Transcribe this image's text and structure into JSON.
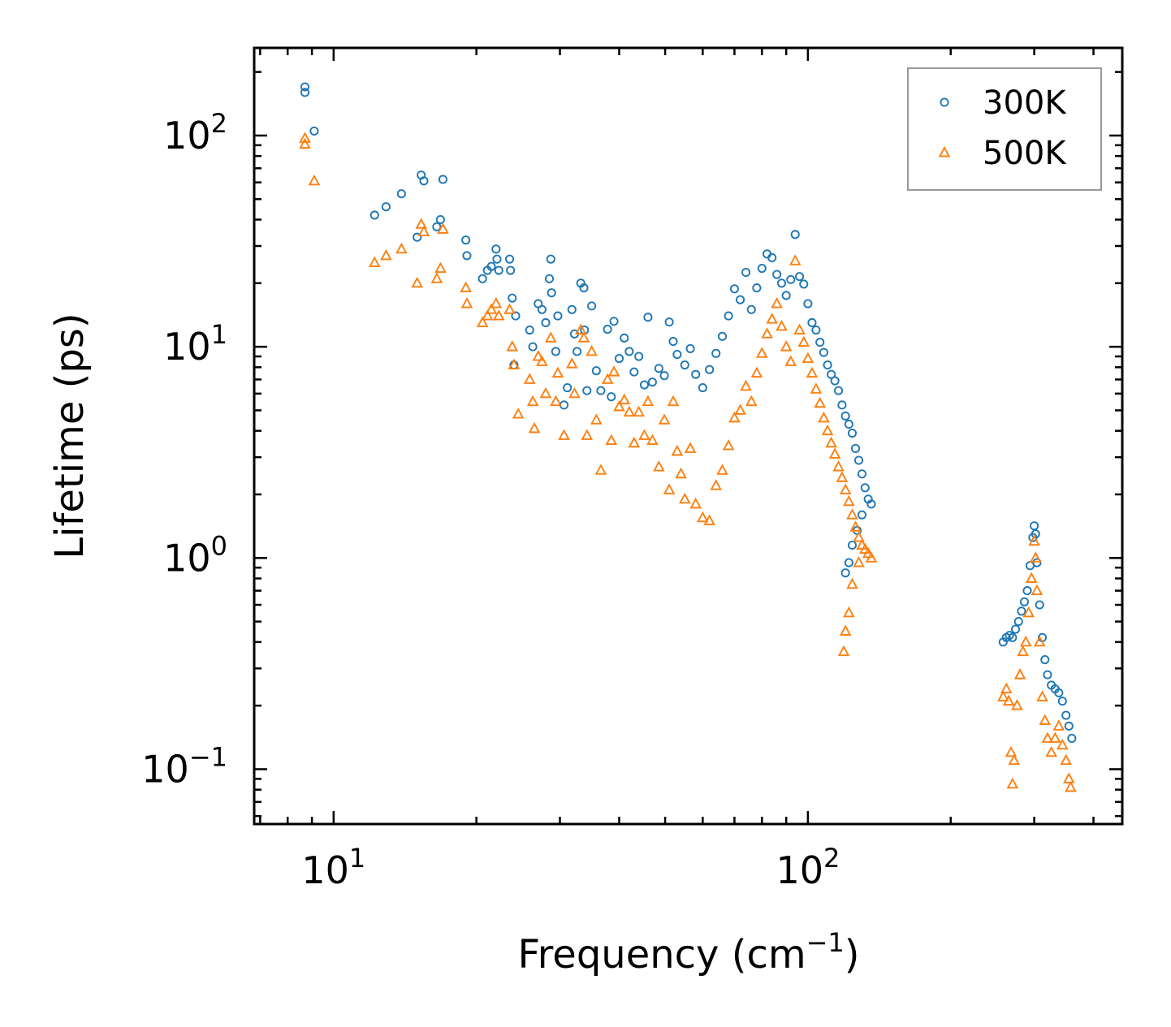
{
  "chart_data": {
    "type": "scatter",
    "title": "",
    "xlabel": "Frequency (cm",
    "xlabel_sup": "−1",
    "xlabel_end": ")",
    "ylabel": "Lifetime (ps)",
    "xscale": "log",
    "yscale": "log",
    "xlim": [
      6.8,
      460
    ],
    "ylim": [
      0.055,
      260
    ],
    "grid": false,
    "legend_position": "top-right",
    "x_ticks": [
      {
        "value": 10,
        "base": "10",
        "exp": "1"
      },
      {
        "value": 100,
        "base": "10",
        "exp": "2"
      }
    ],
    "y_ticks": [
      {
        "value": 0.1,
        "base": "10",
        "exp": "−1"
      },
      {
        "value": 1,
        "base": "10",
        "exp": "0"
      },
      {
        "value": 10,
        "base": "10",
        "exp": "1"
      },
      {
        "value": 100,
        "base": "10",
        "exp": "2"
      }
    ],
    "series": [
      {
        "name": "300K",
        "marker": "circle",
        "color": "#1f77b4",
        "points": [
          [
            8.7,
            170
          ],
          [
            8.7,
            160
          ],
          [
            9.1,
            105
          ],
          [
            12.2,
            42
          ],
          [
            12.9,
            46
          ],
          [
            13.9,
            53
          ],
          [
            15.0,
            33
          ],
          [
            15.3,
            65
          ],
          [
            15.5,
            61
          ],
          [
            16.5,
            37
          ],
          [
            16.8,
            40
          ],
          [
            17.0,
            62
          ],
          [
            19.0,
            32
          ],
          [
            19.1,
            27
          ],
          [
            20.6,
            21
          ],
          [
            21.1,
            23
          ],
          [
            21.5,
            24
          ],
          [
            22.0,
            29
          ],
          [
            22.1,
            26
          ],
          [
            22.3,
            23
          ],
          [
            23.5,
            26
          ],
          [
            23.6,
            23
          ],
          [
            23.8,
            17
          ],
          [
            24.0,
            8.2
          ],
          [
            24.2,
            14
          ],
          [
            25.9,
            12
          ],
          [
            26.3,
            10
          ],
          [
            27.0,
            16
          ],
          [
            27.5,
            15
          ],
          [
            28.0,
            13
          ],
          [
            28.5,
            21
          ],
          [
            28.7,
            26
          ],
          [
            28.8,
            18
          ],
          [
            29.4,
            9.5
          ],
          [
            29.7,
            14
          ],
          [
            30.6,
            5.3
          ],
          [
            31.1,
            6.4
          ],
          [
            31.8,
            15
          ],
          [
            32.2,
            11.5
          ],
          [
            32.6,
            9.5
          ],
          [
            33.2,
            20
          ],
          [
            33.7,
            19
          ],
          [
            33.8,
            12
          ],
          [
            34.2,
            6.2
          ],
          [
            35.0,
            15.6
          ],
          [
            35.8,
            7.7
          ],
          [
            36.6,
            6.2
          ],
          [
            37.8,
            12.1
          ],
          [
            38.5,
            5.8
          ],
          [
            39.0,
            13.2
          ],
          [
            40.0,
            8.8
          ],
          [
            41.0,
            11.0
          ],
          [
            42.0,
            9.5
          ],
          [
            43.0,
            7.6
          ],
          [
            44.0,
            9.0
          ],
          [
            45.2,
            6.6
          ],
          [
            46.0,
            13.8
          ],
          [
            47.0,
            6.8
          ],
          [
            48.5,
            7.9
          ],
          [
            49.8,
            7.3
          ],
          [
            51.0,
            13.1
          ],
          [
            52.0,
            10.6
          ],
          [
            53.0,
            9.2
          ],
          [
            55.0,
            8.2
          ],
          [
            56.5,
            9.8
          ],
          [
            58.0,
            7.4
          ],
          [
            60.0,
            6.4
          ],
          [
            62.0,
            7.8
          ],
          [
            64.0,
            9.3
          ],
          [
            66.0,
            11.2
          ],
          [
            68.0,
            14.0
          ],
          [
            70.0,
            18.8
          ],
          [
            72.0,
            16.7
          ],
          [
            74.0,
            22.5
          ],
          [
            76.0,
            15.0
          ],
          [
            78.0,
            19.0
          ],
          [
            80.0,
            23.5
          ],
          [
            82.0,
            27.5
          ],
          [
            84.0,
            26.4
          ],
          [
            86.0,
            22.0
          ],
          [
            88.0,
            20.0
          ],
          [
            90.0,
            17.5
          ],
          [
            92.0,
            20.8
          ],
          [
            94.0,
            34.0
          ],
          [
            96.0,
            21.5
          ],
          [
            98.0,
            19.8
          ],
          [
            100.0,
            16.0
          ],
          [
            102.0,
            13.0
          ],
          [
            104.0,
            12.0
          ],
          [
            106.0,
            10.5
          ],
          [
            108.0,
            9.4
          ],
          [
            110.0,
            8.2
          ],
          [
            112.0,
            7.4
          ],
          [
            114.0,
            6.9
          ],
          [
            116.0,
            6.2
          ],
          [
            118.0,
            5.3
          ],
          [
            120.0,
            4.7
          ],
          [
            122.0,
            4.3
          ],
          [
            124.0,
            3.9
          ],
          [
            126.0,
            3.3
          ],
          [
            128.0,
            2.9
          ],
          [
            130.0,
            2.5
          ],
          [
            132.0,
            2.15
          ],
          [
            134.0,
            1.9
          ],
          [
            136.0,
            1.8
          ],
          [
            130.0,
            1.6
          ],
          [
            127.0,
            1.35
          ],
          [
            124.0,
            1.15
          ],
          [
            122.0,
            0.95
          ],
          [
            120.0,
            0.85
          ],
          [
            258.0,
            0.4
          ],
          [
            262.0,
            0.42
          ],
          [
            266.0,
            0.43
          ],
          [
            270.0,
            0.42
          ],
          [
            274.0,
            0.46
          ],
          [
            278.0,
            0.5
          ],
          [
            282.0,
            0.56
          ],
          [
            286.0,
            0.62
          ],
          [
            290.0,
            0.7
          ],
          [
            294.0,
            0.92
          ],
          [
            298.0,
            1.25
          ],
          [
            300.0,
            1.42
          ],
          [
            302.0,
            1.3
          ],
          [
            304.0,
            0.95
          ],
          [
            308.0,
            0.6
          ],
          [
            312.0,
            0.42
          ],
          [
            316.0,
            0.33
          ],
          [
            320.0,
            0.28
          ],
          [
            326.0,
            0.25
          ],
          [
            332.0,
            0.24
          ],
          [
            338.0,
            0.23
          ],
          [
            344.0,
            0.21
          ],
          [
            350.0,
            0.18
          ],
          [
            355.0,
            0.16
          ],
          [
            360.0,
            0.14
          ]
        ]
      },
      {
        "name": "500K",
        "marker": "triangle",
        "color": "#ff7f0e",
        "points": [
          [
            8.7,
            97
          ],
          [
            8.7,
            91
          ],
          [
            9.1,
            61
          ],
          [
            12.2,
            25
          ],
          [
            12.9,
            27
          ],
          [
            13.9,
            29
          ],
          [
            15.0,
            20
          ],
          [
            15.3,
            38
          ],
          [
            15.5,
            35
          ],
          [
            16.5,
            21
          ],
          [
            16.8,
            23.5
          ],
          [
            17.0,
            36
          ],
          [
            19.0,
            19
          ],
          [
            19.1,
            16
          ],
          [
            20.6,
            13
          ],
          [
            21.1,
            14
          ],
          [
            21.5,
            15
          ],
          [
            22.0,
            16
          ],
          [
            22.3,
            14
          ],
          [
            23.5,
            15
          ],
          [
            23.8,
            10
          ],
          [
            24.0,
            8.2
          ],
          [
            24.5,
            4.8
          ],
          [
            25.9,
            7.0
          ],
          [
            26.3,
            5.5
          ],
          [
            26.5,
            4.1
          ],
          [
            27.0,
            9.0
          ],
          [
            27.5,
            8.5
          ],
          [
            28.0,
            6.0
          ],
          [
            28.7,
            11
          ],
          [
            29.4,
            5.5
          ],
          [
            29.7,
            7.5
          ],
          [
            30.6,
            3.8
          ],
          [
            31.8,
            8.3
          ],
          [
            32.2,
            6.0
          ],
          [
            33.2,
            12
          ],
          [
            33.7,
            11
          ],
          [
            34.2,
            3.8
          ],
          [
            35.0,
            9.5
          ],
          [
            35.8,
            4.5
          ],
          [
            36.6,
            2.6
          ],
          [
            37.8,
            7.0
          ],
          [
            38.5,
            3.6
          ],
          [
            39.0,
            7.6
          ],
          [
            40.0,
            5.2
          ],
          [
            41.0,
            5.6
          ],
          [
            42.0,
            4.9
          ],
          [
            43.0,
            3.5
          ],
          [
            44.0,
            4.9
          ],
          [
            45.2,
            3.8
          ],
          [
            46.0,
            5.5
          ],
          [
            47.0,
            3.6
          ],
          [
            48.5,
            2.7
          ],
          [
            49.8,
            4.5
          ],
          [
            51.0,
            2.1
          ],
          [
            52.0,
            5.5
          ],
          [
            53.0,
            3.2
          ],
          [
            54.0,
            2.5
          ],
          [
            55.0,
            1.9
          ],
          [
            56.5,
            3.3
          ],
          [
            58.0,
            1.8
          ],
          [
            60.0,
            1.55
          ],
          [
            62.0,
            1.5
          ],
          [
            64.0,
            2.2
          ],
          [
            66.0,
            2.6
          ],
          [
            68.0,
            3.4
          ],
          [
            70.0,
            4.6
          ],
          [
            72.0,
            5.0
          ],
          [
            74.0,
            6.5
          ],
          [
            76.0,
            5.5
          ],
          [
            78.0,
            7.5
          ],
          [
            80.0,
            9.3
          ],
          [
            82.0,
            11.5
          ],
          [
            84.0,
            13.5
          ],
          [
            86.0,
            16.0
          ],
          [
            88.0,
            12.5
          ],
          [
            90.0,
            10.0
          ],
          [
            92.0,
            8.5
          ],
          [
            94.0,
            25.5
          ],
          [
            96.0,
            12.0
          ],
          [
            98.0,
            10.5
          ],
          [
            100.0,
            8.8
          ],
          [
            102.0,
            7.5
          ],
          [
            104.0,
            6.3
          ],
          [
            106.0,
            5.4
          ],
          [
            108.0,
            4.6
          ],
          [
            110.0,
            4.0
          ],
          [
            112.0,
            3.5
          ],
          [
            114.0,
            3.1
          ],
          [
            116.0,
            2.7
          ],
          [
            118.0,
            2.4
          ],
          [
            120.0,
            2.1
          ],
          [
            122.0,
            1.85
          ],
          [
            124.0,
            1.6
          ],
          [
            126.0,
            1.4
          ],
          [
            128.0,
            1.25
          ],
          [
            130.0,
            1.15
          ],
          [
            132.0,
            1.1
          ],
          [
            134.0,
            1.05
          ],
          [
            136.0,
            1.0
          ],
          [
            128.0,
            0.95
          ],
          [
            124.0,
            0.75
          ],
          [
            122.0,
            0.55
          ],
          [
            120.0,
            0.45
          ],
          [
            119.0,
            0.36
          ],
          [
            258.0,
            0.22
          ],
          [
            262.0,
            0.24
          ],
          [
            265.0,
            0.21
          ],
          [
            268.0,
            0.12
          ],
          [
            270.0,
            0.085
          ],
          [
            272.0,
            0.11
          ],
          [
            276.0,
            0.2
          ],
          [
            280.0,
            0.28
          ],
          [
            284.0,
            0.36
          ],
          [
            288.0,
            0.4
          ],
          [
            292.0,
            0.55
          ],
          [
            296.0,
            0.8
          ],
          [
            300.0,
            1.2
          ],
          [
            302.0,
            1.0
          ],
          [
            304.0,
            0.7
          ],
          [
            308.0,
            0.4
          ],
          [
            312.0,
            0.22
          ],
          [
            316.0,
            0.17
          ],
          [
            320.0,
            0.14
          ],
          [
            326.0,
            0.12
          ],
          [
            332.0,
            0.14
          ],
          [
            338.0,
            0.16
          ],
          [
            344.0,
            0.13
          ],
          [
            350.0,
            0.11
          ],
          [
            355.0,
            0.09
          ],
          [
            358.0,
            0.082
          ]
        ]
      }
    ]
  }
}
